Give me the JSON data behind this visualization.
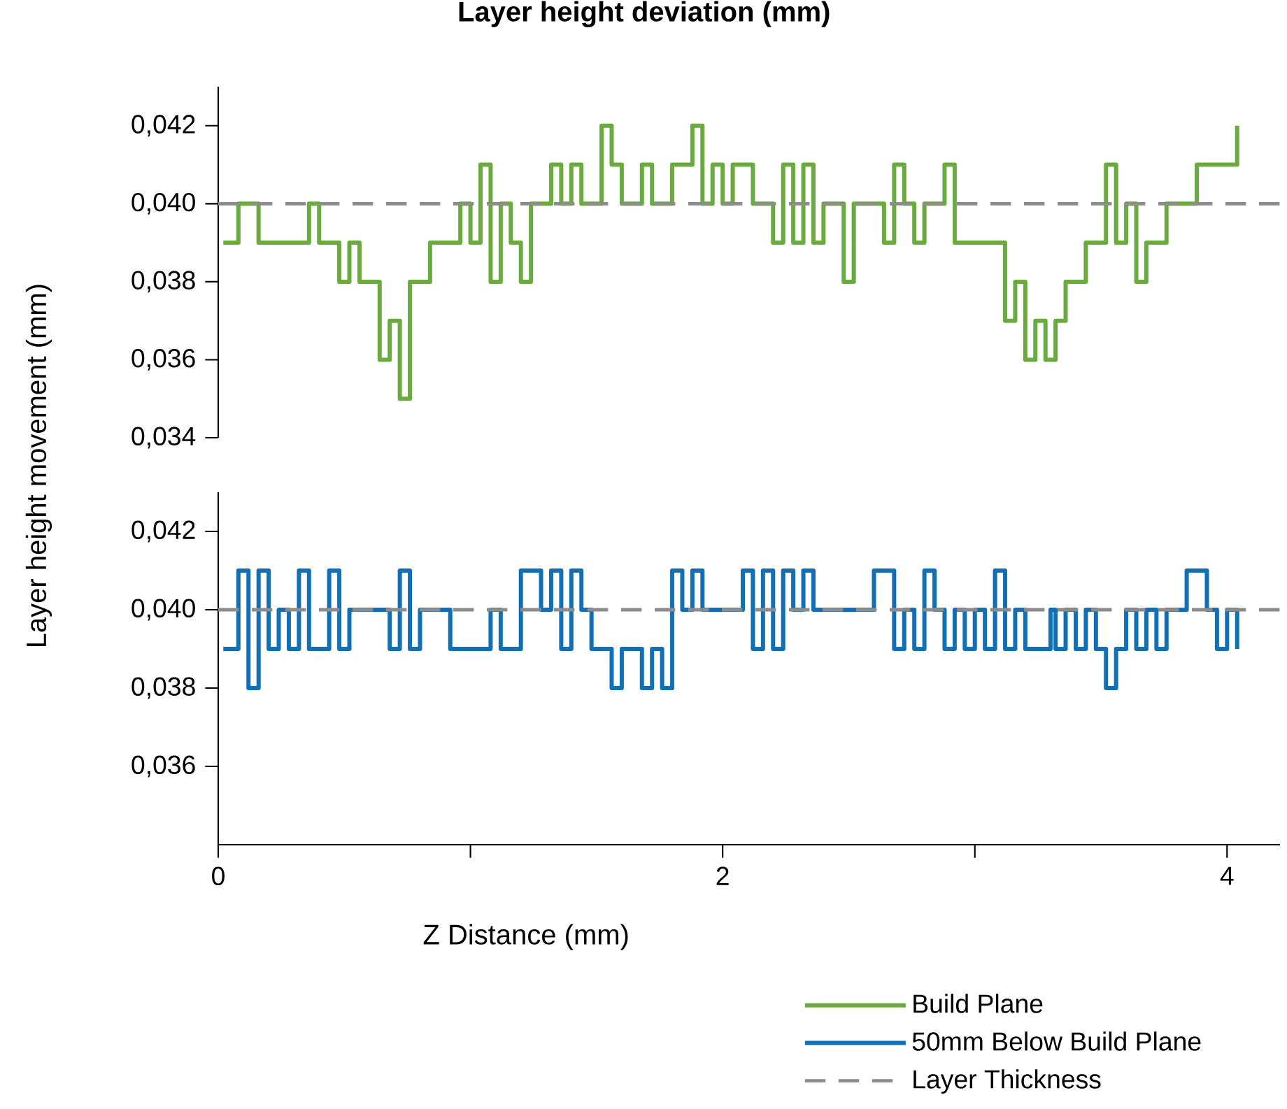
{
  "chart_data": [
    {
      "type": "step",
      "title": "Layer height deviation (mm)",
      "ylabel": "Layer height movement (mm)",
      "xlim": [
        0,
        4.21
      ],
      "ylim": [
        0.034,
        0.043
      ],
      "yticks": [
        {
          "value": 0.034,
          "label": "0,034"
        },
        {
          "value": 0.036,
          "label": "0,036"
        },
        {
          "value": 0.038,
          "label": "0,038"
        },
        {
          "value": 0.04,
          "label": "0,040"
        },
        {
          "value": 0.042,
          "label": "0,042"
        }
      ],
      "tick_labels": "y",
      "series": [
        {
          "name": "Build Plane",
          "color": "#6aaa3e",
          "x": [
            0.02,
            0.08,
            0.16,
            0.36,
            0.4,
            0.48,
            0.52,
            0.56,
            0.64,
            0.68,
            0.72,
            0.76,
            0.84,
            0.96,
            1.0,
            1.04,
            1.08,
            1.12,
            1.16,
            1.2,
            1.24,
            1.32,
            1.36,
            1.4,
            1.44,
            1.52,
            1.56,
            1.6,
            1.68,
            1.72,
            1.8,
            1.88,
            1.92,
            1.96,
            2.0,
            2.04,
            2.12,
            2.2,
            2.24,
            2.28,
            2.32,
            2.36,
            2.4,
            2.48,
            2.52,
            2.64,
            2.68,
            2.72,
            2.76,
            2.8,
            2.88,
            2.92,
            3.12,
            3.16,
            3.2,
            3.24,
            3.28,
            3.32,
            3.36,
            3.44,
            3.52,
            3.56,
            3.6,
            3.64,
            3.68,
            3.76,
            3.88,
            4.04
          ],
          "values": [
            0.039,
            0.04,
            0.039,
            0.04,
            0.039,
            0.038,
            0.039,
            0.038,
            0.036,
            0.037,
            0.035,
            0.038,
            0.039,
            0.04,
            0.039,
            0.041,
            0.038,
            0.04,
            0.039,
            0.038,
            0.04,
            0.041,
            0.04,
            0.041,
            0.04,
            0.042,
            0.041,
            0.04,
            0.041,
            0.04,
            0.041,
            0.042,
            0.04,
            0.041,
            0.04,
            0.041,
            0.04,
            0.039,
            0.041,
            0.039,
            0.041,
            0.039,
            0.04,
            0.038,
            0.04,
            0.039,
            0.041,
            0.04,
            0.039,
            0.04,
            0.041,
            0.039,
            0.037,
            0.038,
            0.036,
            0.037,
            0.036,
            0.037,
            0.038,
            0.039,
            0.041,
            0.039,
            0.04,
            0.038,
            0.039,
            0.04,
            0.041,
            0.042
          ]
        }
      ],
      "ref_lines": [
        {
          "axis": "y",
          "value": 0.04,
          "color": "#8c8c8c",
          "line_style": "dashed"
        }
      ]
    },
    {
      "type": "step",
      "xlabel": "Z Distance (mm)",
      "xlim": [
        0,
        4.21
      ],
      "ylim": [
        0.034,
        0.043
      ],
      "xticks": [
        0,
        {
          "value": 1,
          "label": null
        },
        2,
        {
          "value": 3,
          "label": null
        },
        4
      ],
      "yticks": [
        {
          "value": 0.036,
          "label": "0,036"
        },
        {
          "value": 0.038,
          "label": "0,038"
        },
        {
          "value": 0.04,
          "label": "0,040"
        },
        {
          "value": 0.042,
          "label": "0,042"
        }
      ],
      "legend": "bottom right",
      "series": [
        {
          "name": "50mm Below Build Plane",
          "color": "#1170b5",
          "x": [
            0.02,
            0.08,
            0.12,
            0.16,
            0.2,
            0.24,
            0.28,
            0.32,
            0.36,
            0.44,
            0.48,
            0.52,
            0.68,
            0.72,
            0.76,
            0.8,
            0.92,
            1.08,
            1.12,
            1.2,
            1.28,
            1.32,
            1.36,
            1.4,
            1.44,
            1.48,
            1.56,
            1.6,
            1.68,
            1.72,
            1.76,
            1.8,
            1.84,
            1.88,
            1.92,
            2.08,
            2.12,
            2.16,
            2.2,
            2.24,
            2.28,
            2.32,
            2.36,
            2.6,
            2.68,
            2.72,
            2.76,
            2.8,
            2.84,
            2.88,
            2.92,
            2.96,
            3.0,
            3.04,
            3.08,
            3.12,
            3.16,
            3.2,
            3.3,
            3.32,
            3.36,
            3.4,
            3.44,
            3.48,
            3.52,
            3.56,
            3.6,
            3.64,
            3.68,
            3.72,
            3.76,
            3.84,
            3.92,
            3.96,
            4.0,
            4.04
          ],
          "values": [
            0.039,
            0.041,
            0.038,
            0.041,
            0.039,
            0.04,
            0.039,
            0.041,
            0.039,
            0.041,
            0.039,
            0.04,
            0.039,
            0.041,
            0.039,
            0.04,
            0.039,
            0.04,
            0.039,
            0.041,
            0.04,
            0.041,
            0.039,
            0.041,
            0.04,
            0.039,
            0.038,
            0.039,
            0.038,
            0.039,
            0.038,
            0.041,
            0.04,
            0.041,
            0.04,
            0.041,
            0.039,
            0.041,
            0.039,
            0.041,
            0.04,
            0.041,
            0.04,
            0.041,
            0.039,
            0.04,
            0.039,
            0.041,
            0.04,
            0.039,
            0.04,
            0.039,
            0.04,
            0.039,
            0.041,
            0.039,
            0.04,
            0.039,
            0.04,
            0.039,
            0.04,
            0.039,
            0.04,
            0.039,
            0.038,
            0.039,
            0.04,
            0.039,
            0.04,
            0.039,
            0.04,
            0.041,
            0.04,
            0.039,
            0.04,
            0.039
          ]
        }
      ],
      "ref_lines": [
        {
          "axis": "y",
          "value": 0.04,
          "label": "Layer Thickness",
          "color": "#8c8c8c",
          "line_style": "dashed"
        }
      ]
    }
  ]
}
